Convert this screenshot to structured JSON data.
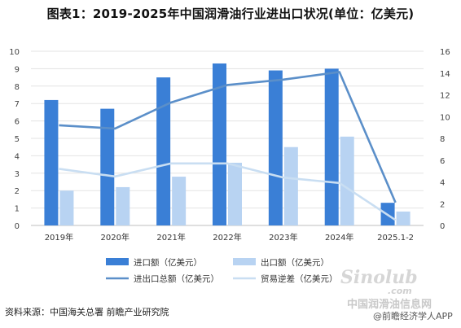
{
  "title": "图表1：2019-2025年中国润滑油行业进出口状况(单位：亿美元)",
  "source": "资料来源：中国海关总署 前瞻产业研究院",
  "watermark": {
    "site_logo": "Sinolub",
    "site_domain": ".com",
    "site_cn": "中国润滑油信息网",
    "app": "@前瞻经济学人APP"
  },
  "colors": {
    "import": "#3a7fd6",
    "export": "#b8d3f2",
    "total": "#5b8fc9",
    "trade_diff": "#c9def2"
  },
  "chart_data": {
    "type": "bar",
    "title": "图表1：2019-2025年中国润滑油行业进出口状况(单位：亿美元)",
    "categories": [
      "2019年",
      "2020年",
      "2021年",
      "2022年",
      "2023年",
      "2024年",
      "2025.1-2"
    ],
    "left_axis": {
      "min": 0,
      "max": 10,
      "step": 1,
      "ticks": [
        "0",
        "1",
        "2",
        "3",
        "4",
        "5",
        "6",
        "7",
        "8",
        "9",
        "10"
      ]
    },
    "right_axis": {
      "min": 0,
      "max": 16,
      "step": 2,
      "ticks": [
        "0",
        "2",
        "4",
        "6",
        "8",
        "10",
        "12",
        "14",
        "16"
      ]
    },
    "series": [
      {
        "name": "进口额（亿美元）",
        "type": "bar",
        "axis": "left",
        "values": [
          7.2,
          6.7,
          8.5,
          9.3,
          8.9,
          9.0,
          1.3
        ]
      },
      {
        "name": "出口额（亿美元）",
        "type": "bar",
        "axis": "left",
        "values": [
          2.0,
          2.2,
          2.8,
          3.6,
          4.5,
          5.1,
          0.8
        ]
      },
      {
        "name": "进出口总额（亿美元）",
        "type": "line",
        "axis": "right",
        "values": [
          9.2,
          8.9,
          11.3,
          12.9,
          13.4,
          14.1,
          2.1
        ]
      },
      {
        "name": "贸易逆差（亿美元）",
        "type": "line",
        "axis": "right",
        "values": [
          5.2,
          4.5,
          5.7,
          5.7,
          4.4,
          3.9,
          0.5
        ]
      }
    ],
    "grid": true,
    "legend_position": "bottom"
  }
}
